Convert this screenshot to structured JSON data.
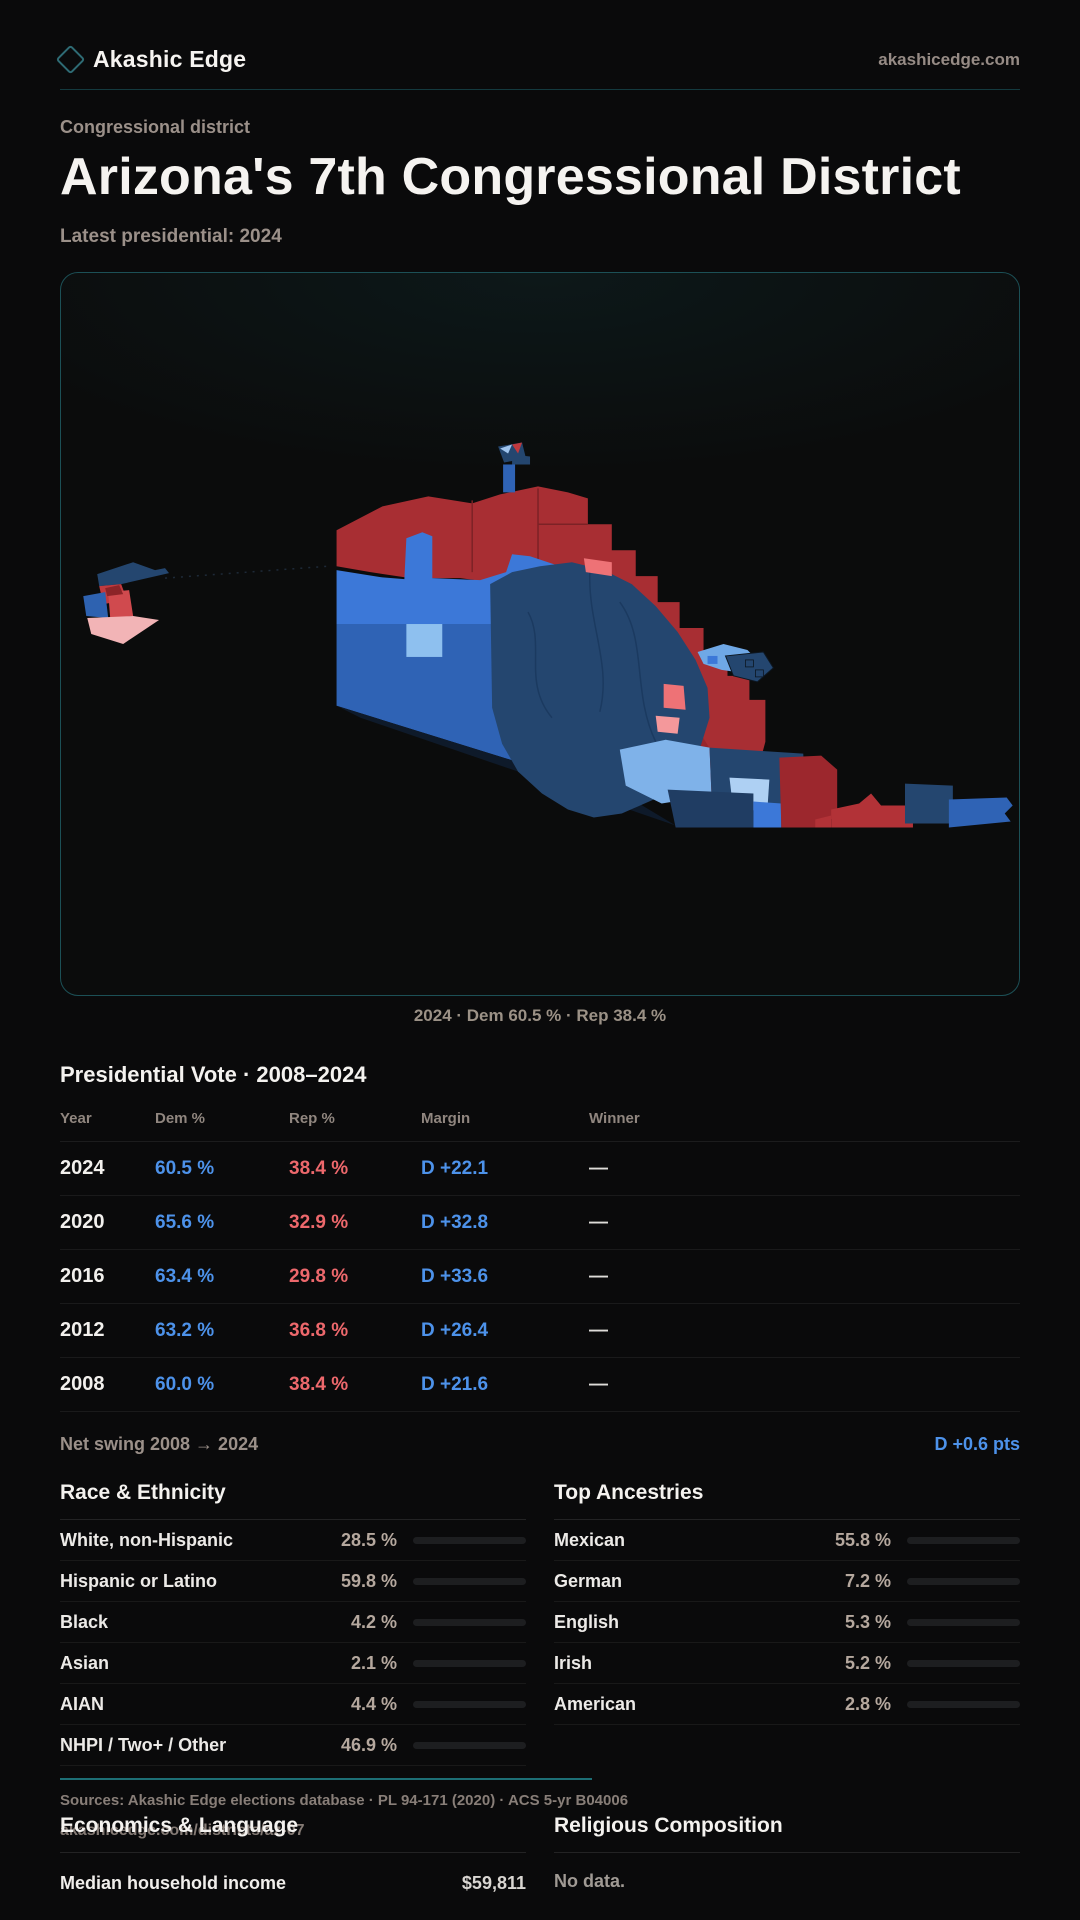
{
  "brand": {
    "name": "Akashic Edge",
    "domain": "akashicedge.com"
  },
  "header": {
    "kicker": "Congressional district",
    "title": "Arizona's 7th Congressional District",
    "subtitle": "Latest presidential: 2024"
  },
  "map": {
    "caption": "2024 · Dem 60.5 % · Rep 38.4 %"
  },
  "vote_table": {
    "title": "Presidential Vote · 2008–2024",
    "columns": [
      "Year",
      "Dem %",
      "Rep %",
      "Margin",
      "Winner"
    ],
    "rows": [
      {
        "year": "2024",
        "dem": "60.5 %",
        "rep": "38.4 %",
        "margin": "D +22.1",
        "winner": "—"
      },
      {
        "year": "2020",
        "dem": "65.6 %",
        "rep": "32.9 %",
        "margin": "D +32.8",
        "winner": "—"
      },
      {
        "year": "2016",
        "dem": "63.4 %",
        "rep": "29.8 %",
        "margin": "D +33.6",
        "winner": "—"
      },
      {
        "year": "2012",
        "dem": "63.2 %",
        "rep": "36.8 %",
        "margin": "D +26.4",
        "winner": "—"
      },
      {
        "year": "2008",
        "dem": "60.0 %",
        "rep": "38.4 %",
        "margin": "D +21.6",
        "winner": "—"
      }
    ],
    "net_swing_label": "Net swing 2008 → 2024",
    "net_swing_value": "D +0.6 pts"
  },
  "race": {
    "title": "Race & Ethnicity",
    "rows": [
      {
        "label": "White, non-Hispanic",
        "value": "28.5 %",
        "pct": 28.5
      },
      {
        "label": "Hispanic or Latino",
        "value": "59.8 %",
        "pct": 59.8
      },
      {
        "label": "Black",
        "value": "4.2 %",
        "pct": 4.2
      },
      {
        "label": "Asian",
        "value": "2.1 %",
        "pct": 2.1
      },
      {
        "label": "AIAN",
        "value": "4.4 %",
        "pct": 4.4
      },
      {
        "label": "NHPI / Two+ / Other",
        "value": "46.9 %",
        "pct": 46.9
      }
    ]
  },
  "ancestries": {
    "title": "Top Ancestries",
    "rows": [
      {
        "label": "Mexican",
        "value": "55.8 %",
        "pct": 55.8
      },
      {
        "label": "German",
        "value": "7.2 %",
        "pct": 7.2
      },
      {
        "label": "English",
        "value": "5.3 %",
        "pct": 5.3
      },
      {
        "label": "Irish",
        "value": "5.2 %",
        "pct": 5.2
      },
      {
        "label": "American",
        "value": "2.8 %",
        "pct": 2.8
      }
    ]
  },
  "economics": {
    "title": "Economics & Language",
    "rows": [
      {
        "label": "Median household income",
        "value": "$59,811"
      }
    ]
  },
  "religion": {
    "title": "Religious Composition",
    "empty": "No data."
  },
  "footer": {
    "sources": "Sources: Akashic Edge elections database · PL 94-171 (2020) · ACS 5-yr B04006",
    "permalink": "akashicedge.com/districts/az-07"
  },
  "colors": {
    "dem_blue": "#4d92ea",
    "rep_red": "#ed686c",
    "accent_teal": "#1d6e75",
    "map_navy": "#24466f",
    "map_blue": "#3c78d8",
    "map_red": "#a82e33",
    "map_salmon": "#ee7276",
    "map_pink": "#f2b4b6"
  }
}
